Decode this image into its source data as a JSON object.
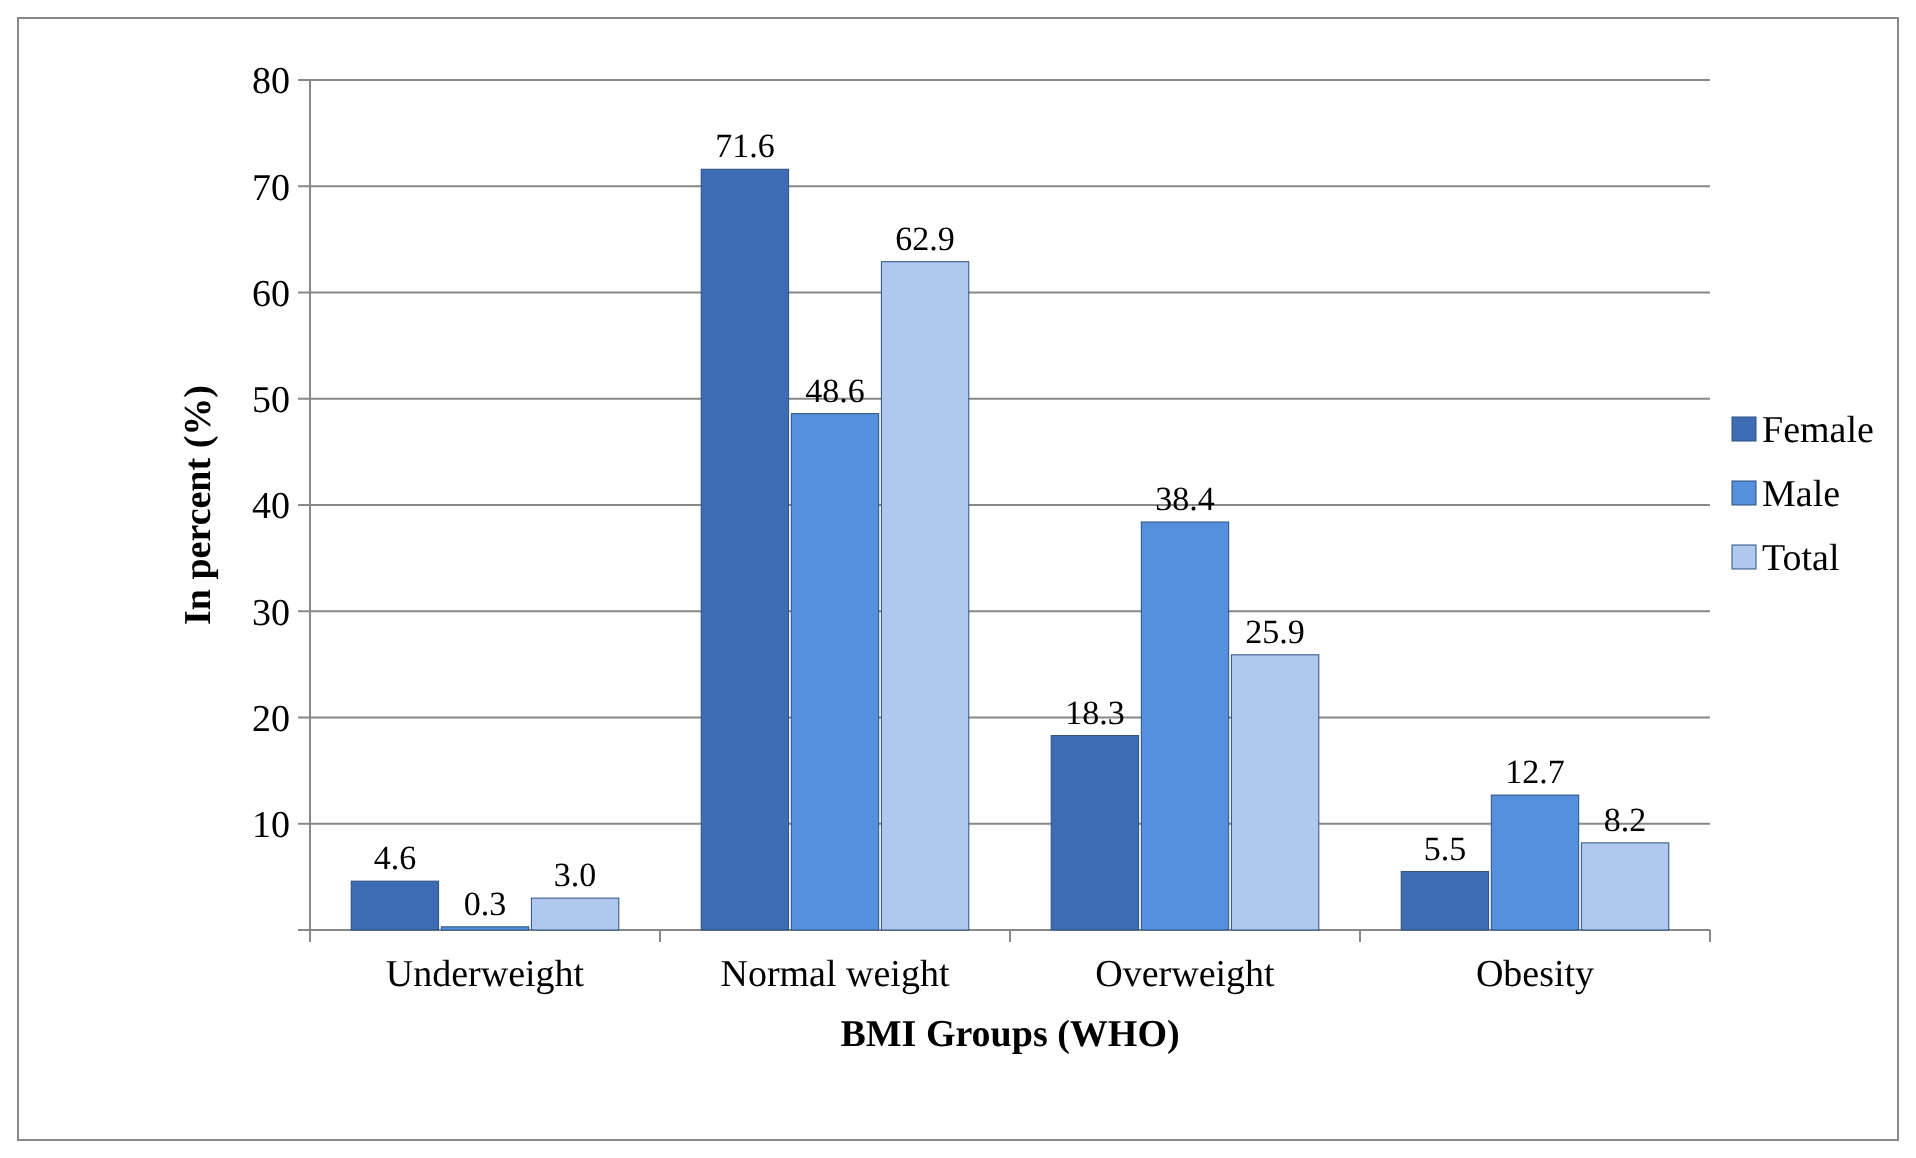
{
  "chart_data": {
    "type": "bar",
    "xlabel": "BMI Groups (WHO)",
    "ylabel": "In percent (%)",
    "categories": [
      "Underweight",
      "Normal weight",
      "Overweight",
      "Obesity"
    ],
    "series": [
      {
        "name": "Female",
        "color": "#3d6cb5",
        "values": [
          4.6,
          71.6,
          18.3,
          5.5
        ],
        "value_labels": [
          "4.6",
          "71.6",
          "18.3",
          "5.5"
        ]
      },
      {
        "name": "Male",
        "color": "#5590dc",
        "values": [
          0.3,
          48.6,
          38.4,
          12.7
        ],
        "value_labels": [
          "0.3",
          "48.6",
          "38.4",
          "12.7"
        ]
      },
      {
        "name": "Total",
        "color": "#aec8ee",
        "values": [
          3.0,
          62.9,
          25.9,
          8.2
        ],
        "value_labels": [
          "3.0",
          "62.9",
          "25.9",
          "8.2"
        ]
      }
    ],
    "ylim": [
      0,
      80
    ],
    "yticks": [
      {
        "value": 0,
        "label": null
      },
      10,
      20,
      30,
      40,
      50,
      60,
      70,
      80
    ],
    "grid": "y",
    "legend": "right"
  }
}
